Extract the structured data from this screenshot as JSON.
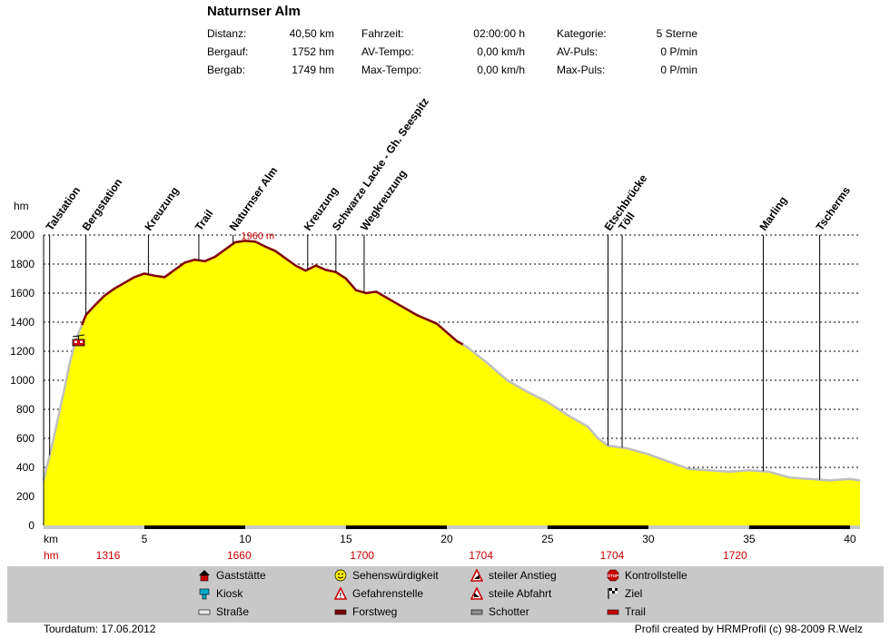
{
  "header": {
    "title": "Naturnser Alm",
    "stats": [
      {
        "label": "Distanz:",
        "value": "40,50 km"
      },
      {
        "label": "Bergauf:",
        "value": "1752 hm"
      },
      {
        "label": "Bergab:",
        "value": "1749 hm"
      },
      {
        "label": "Fahrzeit:",
        "value": "02:00:00 h"
      },
      {
        "label": "AV-Tempo:",
        "value": "0,00 km/h"
      },
      {
        "label": "Max-Tempo:",
        "value": "0,00 km/h"
      },
      {
        "label": "Kategorie:",
        "value": "5 Sterne"
      },
      {
        "label": "AV-Puls:",
        "value": "0 P/min"
      },
      {
        "label": "Max-Puls:",
        "value": "0 P/min"
      }
    ]
  },
  "chart_data": {
    "type": "area",
    "ylabel": "hm",
    "xlabel": "km",
    "xlim": [
      0,
      40.5
    ],
    "ylim": [
      0,
      2000
    ],
    "yticks": [
      0,
      200,
      400,
      600,
      800,
      1000,
      1200,
      1400,
      1600,
      1800,
      2000
    ],
    "xticks": [
      5,
      10,
      15,
      20,
      25,
      30,
      35,
      40
    ],
    "fill_color": "#ffff00",
    "trail_color": "#800000",
    "road_color": "#c0c0c0",
    "x": [
      0,
      0.5,
      1.0,
      1.3,
      1.6,
      1.9,
      2.1,
      2.5,
      3.0,
      3.5,
      4.0,
      4.5,
      5.0,
      5.5,
      6.0,
      6.5,
      7.0,
      7.5,
      8.0,
      8.5,
      9.0,
      9.5,
      10.0,
      10.5,
      11.0,
      11.5,
      12.0,
      12.5,
      13.0,
      13.5,
      14.0,
      14.5,
      15.0,
      15.5,
      16.0,
      16.5,
      17.0,
      17.5,
      18.0,
      18.5,
      19.0,
      19.5,
      20.0,
      20.5,
      21.0,
      22.0,
      23.0,
      24.0,
      25.0,
      26.0,
      27.0,
      27.5,
      28.0,
      29.0,
      30.0,
      31.0,
      32.0,
      33.0,
      34.0,
      35.0,
      36.0,
      37.0,
      38.0,
      39.0,
      40.0,
      40.5
    ],
    "y": [
      310,
      600,
      920,
      1120,
      1280,
      1380,
      1450,
      1510,
      1580,
      1630,
      1670,
      1710,
      1735,
      1720,
      1710,
      1760,
      1810,
      1830,
      1820,
      1850,
      1900,
      1950,
      1960,
      1955,
      1920,
      1890,
      1840,
      1790,
      1755,
      1790,
      1760,
      1745,
      1700,
      1620,
      1600,
      1610,
      1570,
      1530,
      1490,
      1450,
      1420,
      1390,
      1330,
      1270,
      1230,
      1120,
      1000,
      920,
      850,
      760,
      680,
      600,
      550,
      530,
      490,
      440,
      390,
      380,
      370,
      380,
      370,
      330,
      320,
      310,
      320,
      310
    ],
    "trail_range_km": [
      1.9,
      20.8
    ],
    "summit_label": "1960 m",
    "summit_x": 9.8,
    "waypoints": [
      {
        "name": "Talstation",
        "km": 0.3
      },
      {
        "name": "Bergstation",
        "km": 2.1
      },
      {
        "name": "Kreuzung",
        "km": 5.2
      },
      {
        "name": "Trail",
        "km": 7.7
      },
      {
        "name": "Naturnser Alm",
        "km": 9.4
      },
      {
        "name": "Kreuzung",
        "km": 13.1
      },
      {
        "name": "Schwarze Lacke - Gh. Seespitz",
        "km": 14.5
      },
      {
        "name": "Wegkreuzung",
        "km": 15.9
      },
      {
        "name": "Etschbrücke",
        "km": 28.0
      },
      {
        "name": "Töll",
        "km": 28.7
      },
      {
        "name": "Marling",
        "km": 35.7
      },
      {
        "name": "Tscherms",
        "km": 38.5
      }
    ],
    "hm_row_label": "hm",
    "hm_values": [
      {
        "km": 3.2,
        "value": "1316"
      },
      {
        "km": 9.7,
        "value": "1660"
      },
      {
        "km": 15.8,
        "value": "1700"
      },
      {
        "km": 21.7,
        "value": "1704"
      },
      {
        "km": 28.2,
        "value": "1704"
      },
      {
        "km": 34.3,
        "value": "1720"
      }
    ],
    "surface_bar_segments_km": [
      [
        5.0,
        10.0
      ],
      [
        15.0,
        20.0
      ],
      [
        25.0,
        30.0
      ],
      [
        35.0,
        40.0
      ]
    ]
  },
  "legend": [
    {
      "icon": "gaststaette-icon",
      "label": "Gaststätte"
    },
    {
      "icon": "kiosk-icon",
      "label": "Kiosk"
    },
    {
      "icon": "strasse-icon",
      "label": "Straße"
    },
    {
      "icon": "sehenswuerdigkeit-icon",
      "label": "Sehenswürdigkeit"
    },
    {
      "icon": "gefahrenstelle-icon",
      "label": "Gefahrenstelle"
    },
    {
      "icon": "forstweg-icon",
      "label": "Forstweg"
    },
    {
      "icon": "steiler-anstieg-icon",
      "label": "steiler Anstieg"
    },
    {
      "icon": "steile-abfahrt-icon",
      "label": "steile Abfahrt"
    },
    {
      "icon": "schotter-icon",
      "label": "Schotter"
    },
    {
      "icon": "kontrollstelle-icon",
      "label": "Kontrollstelle"
    },
    {
      "icon": "ziel-icon",
      "label": "Ziel"
    },
    {
      "icon": "trail-icon",
      "label": "Trail"
    }
  ],
  "footer": {
    "date": "Tourdatum: 17.06.2012",
    "credit": "Profil created by HRMProfil (c) 98-2009 R.Welz"
  }
}
